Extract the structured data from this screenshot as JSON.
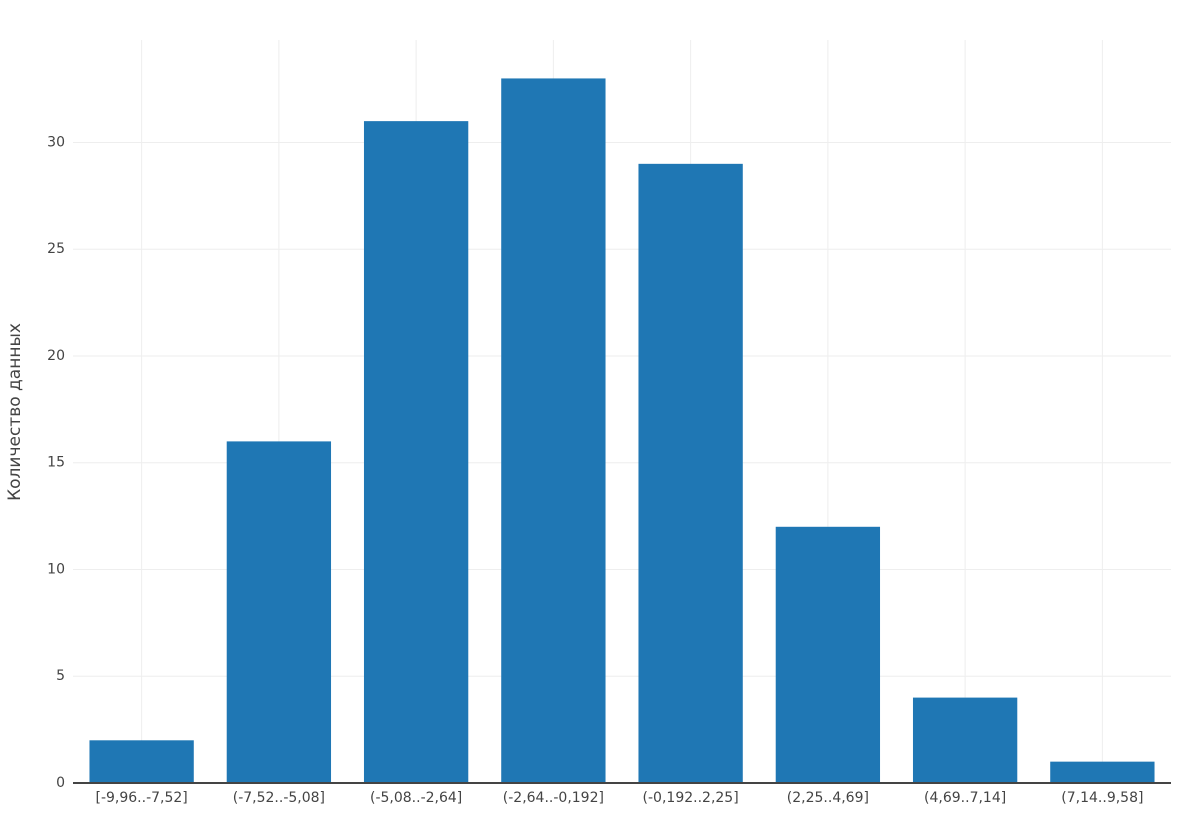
{
  "chart_data": {
    "type": "bar",
    "y_label": "Количество данных",
    "categories": [
      "[-9,96..-7,52]",
      "(-7,52..-5,08]",
      "(-5,08..-2,64]",
      "(-2,64..-0,192]",
      "(-0,192..2,25]",
      "(2,25..4,69]",
      "(4,69..7,14]",
      "(7,14..9,58]"
    ],
    "values": [
      2,
      16,
      31,
      33,
      29,
      12,
      4,
      1
    ],
    "color": "#1f77b4",
    "ylim": [
      0,
      34.8
    ],
    "yticks": [
      0,
      5,
      10,
      15,
      20,
      25,
      30
    ],
    "grid": true
  }
}
